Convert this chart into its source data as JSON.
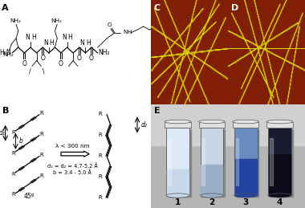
{
  "bg_color": "#ffffff",
  "panel_A_label": "A",
  "panel_B_label": "B",
  "panel_C_label": "C",
  "panel_D_label": "D",
  "panel_E_label": "E",
  "label_fontsize": 8,
  "small_fontsize": 5.5,
  "diacetylene_text": "d₁ = d₂ = 4.7-5.2 Å\nb = 3.4 - 5.0 Å",
  "wavelength_text": "λ < 300 nm",
  "angle_text": "45º",
  "d1_text": "d₁",
  "d2_text": "d₂",
  "b_text": "b",
  "afm_bg_r": 0.5,
  "afm_bg_g": 0.12,
  "afm_bg_b": 0.02,
  "afm_fiber_r": 0.85,
  "afm_fiber_g": 0.85,
  "afm_fiber_b": 0.0,
  "panel_E_bg": "#b8b8b8",
  "tube_bg_color": "#e8eef5",
  "tube1_content": "#dde4ef",
  "tube2_content": "#c0cce0",
  "tube3_content": "#3a5ea0",
  "tube4_content": "#111122",
  "tube_cap_color": "#f0f0f0"
}
